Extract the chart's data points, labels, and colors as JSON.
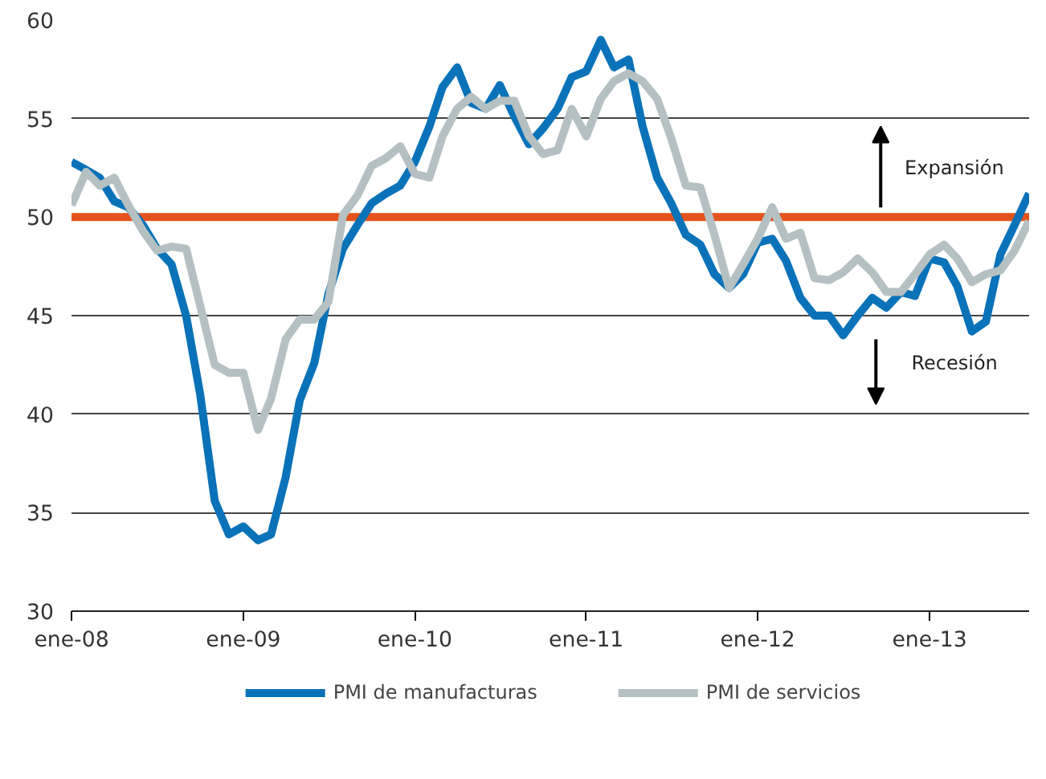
{
  "chart_data": {
    "type": "line",
    "x": [
      "2008-01",
      "2008-02",
      "2008-03",
      "2008-04",
      "2008-05",
      "2008-06",
      "2008-07",
      "2008-08",
      "2008-09",
      "2008-10",
      "2008-11",
      "2008-12",
      "2009-01",
      "2009-02",
      "2009-03",
      "2009-04",
      "2009-05",
      "2009-06",
      "2009-07",
      "2009-08",
      "2009-09",
      "2009-10",
      "2009-11",
      "2009-12",
      "2010-01",
      "2010-02",
      "2010-03",
      "2010-04",
      "2010-05",
      "2010-06",
      "2010-07",
      "2010-08",
      "2010-09",
      "2010-10",
      "2010-11",
      "2010-12",
      "2011-01",
      "2011-02",
      "2011-03",
      "2011-04",
      "2011-05",
      "2011-06",
      "2011-07",
      "2011-08",
      "2011-09",
      "2011-10",
      "2011-11",
      "2011-12",
      "2012-01",
      "2012-02",
      "2012-03",
      "2012-04",
      "2012-05",
      "2012-06",
      "2012-07",
      "2012-08",
      "2012-09",
      "2012-10",
      "2012-11",
      "2012-12",
      "2013-01",
      "2013-02",
      "2013-03",
      "2013-04",
      "2013-05",
      "2013-06",
      "2013-07",
      "2013-08"
    ],
    "series": [
      {
        "name": "PMI de manufacturas",
        "color": "#0a72b8",
        "values": [
          52.8,
          52.4,
          52.0,
          50.8,
          50.5,
          49.6,
          48.4,
          47.6,
          45.0,
          41.0,
          35.6,
          33.9,
          34.3,
          33.6,
          33.9,
          36.8,
          40.7,
          42.6,
          46.1,
          48.4,
          49.6,
          50.7,
          51.2,
          51.6,
          52.8,
          54.6,
          56.6,
          57.6,
          55.8,
          55.5,
          56.7,
          55.1,
          53.7,
          54.5,
          55.5,
          57.1,
          57.4,
          59.0,
          57.6,
          58.0,
          54.6,
          52.0,
          50.7,
          49.1,
          48.6,
          47.1,
          46.4,
          47.1,
          48.7,
          48.9,
          47.8,
          45.9,
          45.0,
          45.0,
          44.0,
          45.0,
          45.9,
          45.4,
          46.2,
          46.0,
          47.9,
          47.7,
          46.5,
          44.2,
          44.7,
          48.1,
          49.6,
          51.2
        ]
      },
      {
        "name": "PMI de servicios",
        "color": "#b5c0c2",
        "values": [
          50.6,
          52.3,
          51.6,
          52.0,
          50.6,
          49.3,
          48.3,
          48.5,
          48.4,
          45.5,
          42.5,
          42.1,
          42.1,
          39.2,
          40.8,
          43.8,
          44.8,
          44.8,
          45.7,
          50.1,
          51.1,
          52.6,
          53.0,
          53.6,
          52.2,
          52.0,
          54.1,
          55.5,
          56.1,
          55.5,
          55.9,
          55.9,
          54.1,
          53.2,
          53.4,
          55.5,
          54.1,
          56.0,
          56.9,
          57.3,
          56.9,
          56.0,
          54.0,
          51.6,
          51.5,
          49.1,
          46.4,
          47.6,
          48.9,
          50.5,
          48.9,
          49.2,
          46.9,
          46.8,
          47.2,
          47.9,
          47.2,
          46.2,
          46.2,
          47.1,
          48.1,
          48.6,
          47.9,
          46.7,
          47.1,
          47.3,
          48.3,
          49.8
        ]
      }
    ],
    "xlim": [
      "2008-01",
      "2013-08"
    ],
    "xticks": [
      {
        "value": "2008-01",
        "label": "ene-08"
      },
      {
        "value": "2009-01",
        "label": "ene-09"
      },
      {
        "value": "2010-01",
        "label": "ene-10"
      },
      {
        "value": "2011-01",
        "label": "ene-11"
      },
      {
        "value": "2012-01",
        "label": "ene-12"
      },
      {
        "value": "2013-01",
        "label": "ene-13"
      }
    ],
    "ylim": [
      30,
      60
    ],
    "yticks": [
      30,
      35,
      40,
      45,
      50,
      55,
      60
    ],
    "grid": "y",
    "legend": "bottom",
    "line_style": "solid",
    "ref_lines": [
      {
        "axis": "y",
        "value": 50,
        "color": "#e4521b"
      }
    ],
    "annotations": [
      "Expansión",
      "Recesión"
    ]
  }
}
